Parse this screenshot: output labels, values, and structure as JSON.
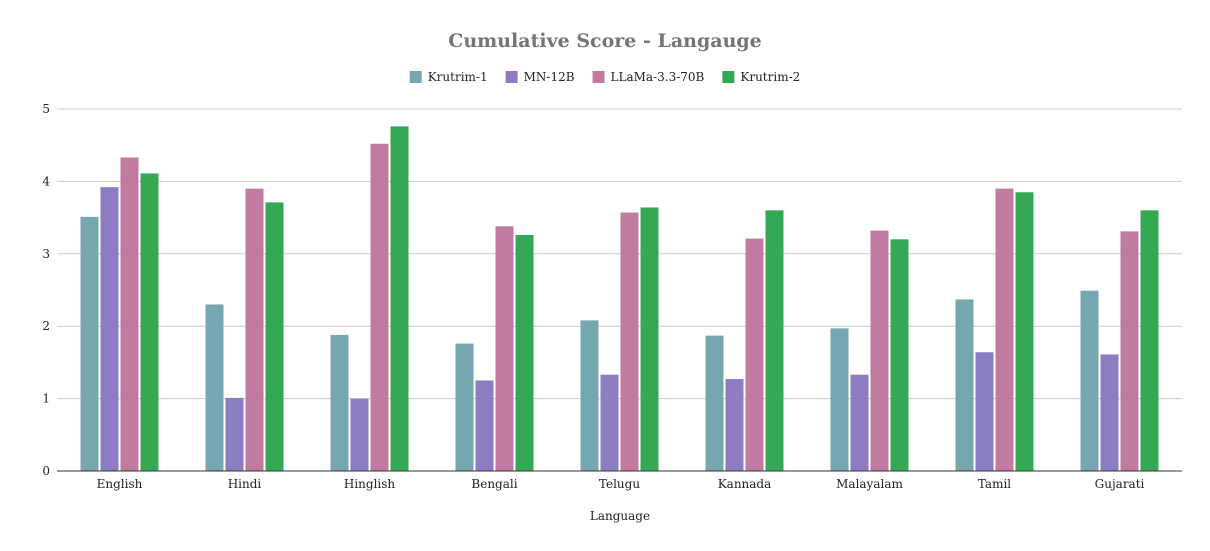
{
  "chart_data": {
    "type": "bar",
    "title": "Cumulative Score - Langauge",
    "xlabel": "Language",
    "ylabel": "",
    "ylim": [
      0,
      5
    ],
    "yticks": [
      0,
      1,
      2,
      3,
      4,
      5
    ],
    "grid": true,
    "legend_position": "top",
    "categories": [
      "English",
      "Hindi",
      "Hinglish",
      "Bengali",
      "Telugu",
      "Kannada",
      "Malayalam",
      "Tamil",
      "Gujarati"
    ],
    "series": [
      {
        "name": "Krutrim-1",
        "color": "#76a6b0",
        "values": [
          3.51,
          2.3,
          1.88,
          1.76,
          2.08,
          1.87,
          1.97,
          2.37,
          2.49
        ]
      },
      {
        "name": "MN-12B",
        "color": "#8e7cc3",
        "values": [
          3.92,
          1.01,
          1.0,
          1.25,
          1.33,
          1.27,
          1.33,
          1.64,
          1.61
        ]
      },
      {
        "name": "LLaMa-3.3-70B",
        "color": "#c27ba0",
        "values": [
          4.33,
          3.9,
          4.52,
          3.38,
          3.57,
          3.21,
          3.32,
          3.9,
          3.31
        ]
      },
      {
        "name": "Krutrim-2",
        "color": "#34a853",
        "values": [
          4.11,
          3.71,
          4.76,
          3.26,
          3.64,
          3.6,
          3.2,
          3.85,
          3.6
        ]
      }
    ]
  }
}
